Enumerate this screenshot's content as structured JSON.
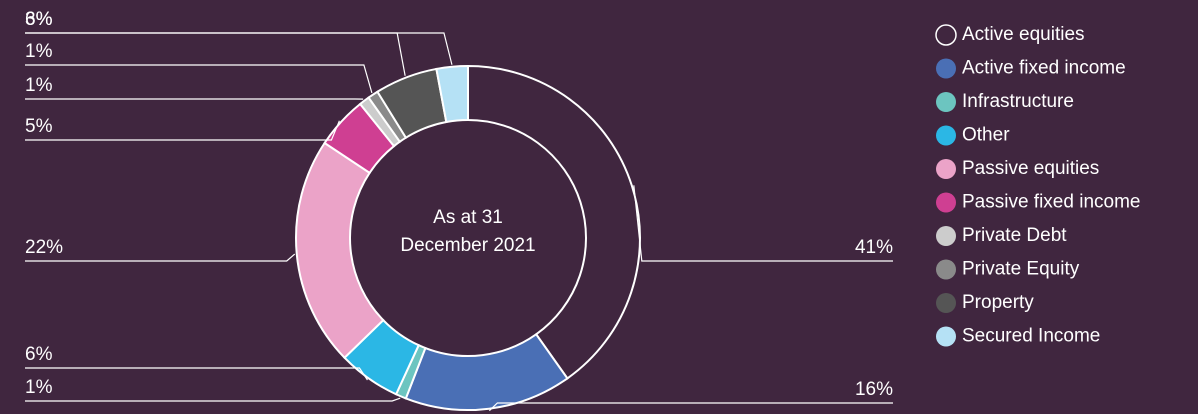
{
  "chart_data": {
    "type": "donut",
    "center_label": [
      "As at 31",
      "December 2021"
    ],
    "categories": [
      "Active equities",
      "Active fixed income",
      "Infrastructure",
      "Other",
      "Passive equities",
      "Passive fixed income",
      "Private Debt",
      "Private Equity",
      "Property",
      "Secured Income"
    ],
    "values": [
      41,
      16,
      1,
      6,
      22,
      5,
      1,
      1,
      6,
      3
    ],
    "value_labels": [
      "41%",
      "16%",
      "1%",
      "6%",
      "22%",
      "5%",
      "1%",
      "1%",
      "6%",
      "3%"
    ],
    "colors": [
      "#40263f",
      "#4a6fb5",
      "#6cc5c0",
      "#2bb7e5",
      "#eba3c8",
      "#cf3f92",
      "#cccccc",
      "#8a8a8a",
      "#555555",
      "#b5e1f5"
    ],
    "legend": "right"
  }
}
